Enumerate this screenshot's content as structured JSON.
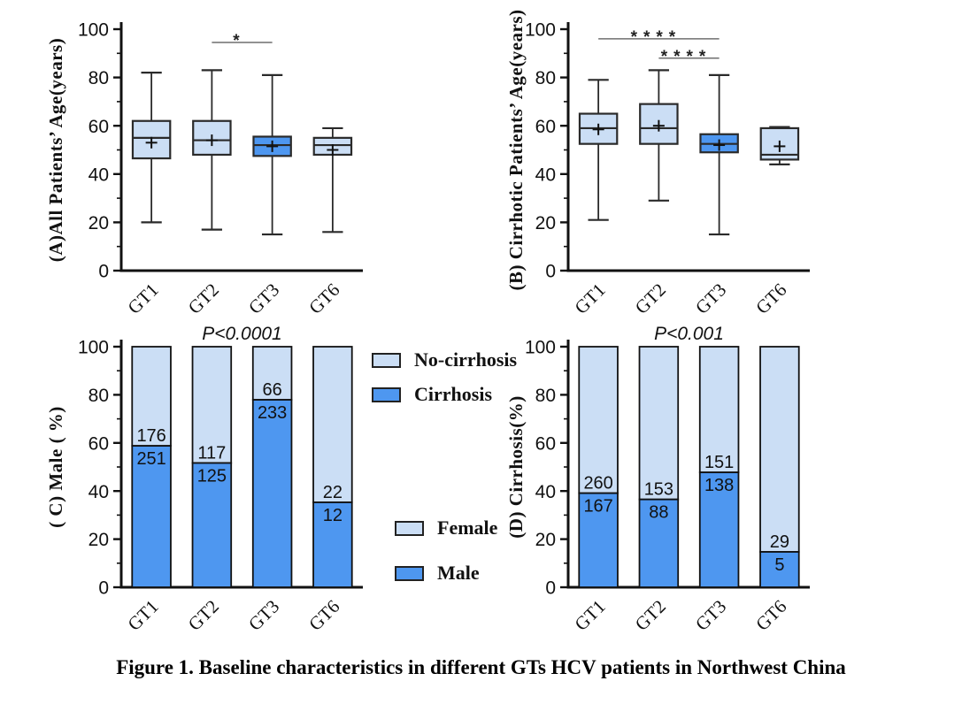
{
  "figure": {
    "caption": "Figure 1. Baseline characteristics in different GTs HCV patients in Northwest China"
  },
  "colors": {
    "light_blue": "#CBDEF5",
    "dark_blue": "#4E97F0",
    "axis": "#111111",
    "box_border": "#2A2A2A",
    "bar_border": "#111111",
    "sig_line": "#6F6F6F",
    "text": "#111111"
  },
  "legends": [
    {
      "id": "cirrhosis-legend",
      "position": "top middle, between panels C and D",
      "items": [
        {
          "label": "No-cirrhosis",
          "fill": "light_blue"
        },
        {
          "label": "Cirrhosis",
          "fill": "dark_blue"
        }
      ]
    },
    {
      "id": "sex-legend",
      "position": "lower middle, between panels C and D",
      "items": [
        {
          "label": "Female",
          "fill": "light_blue"
        },
        {
          "label": "Male",
          "fill": "dark_blue"
        }
      ]
    }
  ],
  "chart_data": [
    {
      "panel": "A",
      "type": "box",
      "title": "",
      "ylabel": "(A)All Patients’ Age(years)",
      "xlabel": "",
      "ylim": [
        0,
        100
      ],
      "yticks": [
        0,
        20,
        40,
        60,
        80,
        100
      ],
      "minor_tick_step": 10,
      "categories": [
        "GT1",
        "GT2",
        "GT3",
        "GT6"
      ],
      "boxes": [
        {
          "category": "GT1",
          "min": 20,
          "q1": 46.5,
          "median": 55,
          "q3": 62,
          "max": 82,
          "mean": 53,
          "fill": "light_blue"
        },
        {
          "category": "GT2",
          "min": 17,
          "q1": 48,
          "median": 54,
          "q3": 62,
          "max": 83,
          "mean": 54,
          "fill": "light_blue"
        },
        {
          "category": "GT3",
          "min": 15,
          "q1": 47.5,
          "median": 52,
          "q3": 55.5,
          "max": 81,
          "mean": 51.5,
          "fill": "dark_blue"
        },
        {
          "category": "GT6",
          "min": 16,
          "q1": 48,
          "median": 52,
          "q3": 55,
          "max": 59,
          "mean": 50,
          "fill": "light_blue"
        }
      ],
      "significance": [
        {
          "from": "GT2",
          "to": "GT3",
          "label": "*",
          "y": 94.5
        }
      ]
    },
    {
      "panel": "B",
      "type": "box",
      "title": "",
      "ylabel": "(B) Cirrhotic Patients’ Age(years)",
      "xlabel": "",
      "ylim": [
        0,
        100
      ],
      "yticks": [
        0,
        20,
        40,
        60,
        80,
        100
      ],
      "minor_tick_step": 10,
      "categories": [
        "GT1",
        "GT2",
        "GT3",
        "GT6"
      ],
      "boxes": [
        {
          "category": "GT1",
          "min": 21,
          "q1": 52.5,
          "median": 59,
          "q3": 65,
          "max": 79,
          "mean": 58.5,
          "fill": "light_blue"
        },
        {
          "category": "GT2",
          "min": 29,
          "q1": 52.5,
          "median": 59,
          "q3": 69,
          "max": 83,
          "mean": 60,
          "fill": "light_blue"
        },
        {
          "category": "GT3",
          "min": 15,
          "q1": 49,
          "median": 52.5,
          "q3": 56.5,
          "max": 81,
          "mean": 52,
          "fill": "dark_blue"
        },
        {
          "category": "GT6",
          "min": 44,
          "q1": 46,
          "median": 48,
          "q3": 59,
          "max": 59.5,
          "mean": 51.5,
          "fill": "light_blue"
        }
      ],
      "significance": [
        {
          "from": "GT1",
          "to": "GT3",
          "label": "****",
          "y": 96
        },
        {
          "from": "GT2",
          "to": "GT3",
          "label": "****",
          "y": 88
        }
      ]
    },
    {
      "panel": "C",
      "type": "stacked_bar_percent",
      "title": "P<0.0001",
      "ylabel": "( C) Male ( %)",
      "xlabel": "",
      "ylim": [
        0,
        100
      ],
      "yticks": [
        0,
        20,
        40,
        60,
        80,
        100
      ],
      "minor_tick_step": 10,
      "categories": [
        "GT1",
        "GT2",
        "GT3",
        "GT6"
      ],
      "normalized_to_percent": true,
      "series": [
        {
          "name": "Male",
          "position": "bottom",
          "fill": "dark_blue",
          "values": [
            251,
            125,
            233,
            12
          ]
        },
        {
          "name": "Female",
          "position": "top",
          "fill": "light_blue",
          "values": [
            176,
            117,
            66,
            22
          ]
        }
      ]
    },
    {
      "panel": "D",
      "type": "stacked_bar_percent",
      "title": "P<0.001",
      "ylabel": "(D) Cirrhosis(%)",
      "xlabel": "",
      "ylim": [
        0,
        100
      ],
      "yticks": [
        0,
        20,
        40,
        60,
        80,
        100
      ],
      "minor_tick_step": 10,
      "categories": [
        "GT1",
        "GT2",
        "GT3",
        "GT6"
      ],
      "normalized_to_percent": true,
      "series": [
        {
          "name": "Cirrhosis",
          "position": "bottom",
          "fill": "dark_blue",
          "values": [
            167,
            88,
            138,
            5
          ]
        },
        {
          "name": "No-cirrhosis",
          "position": "top",
          "fill": "light_blue",
          "values": [
            260,
            153,
            151,
            29
          ]
        }
      ]
    }
  ]
}
